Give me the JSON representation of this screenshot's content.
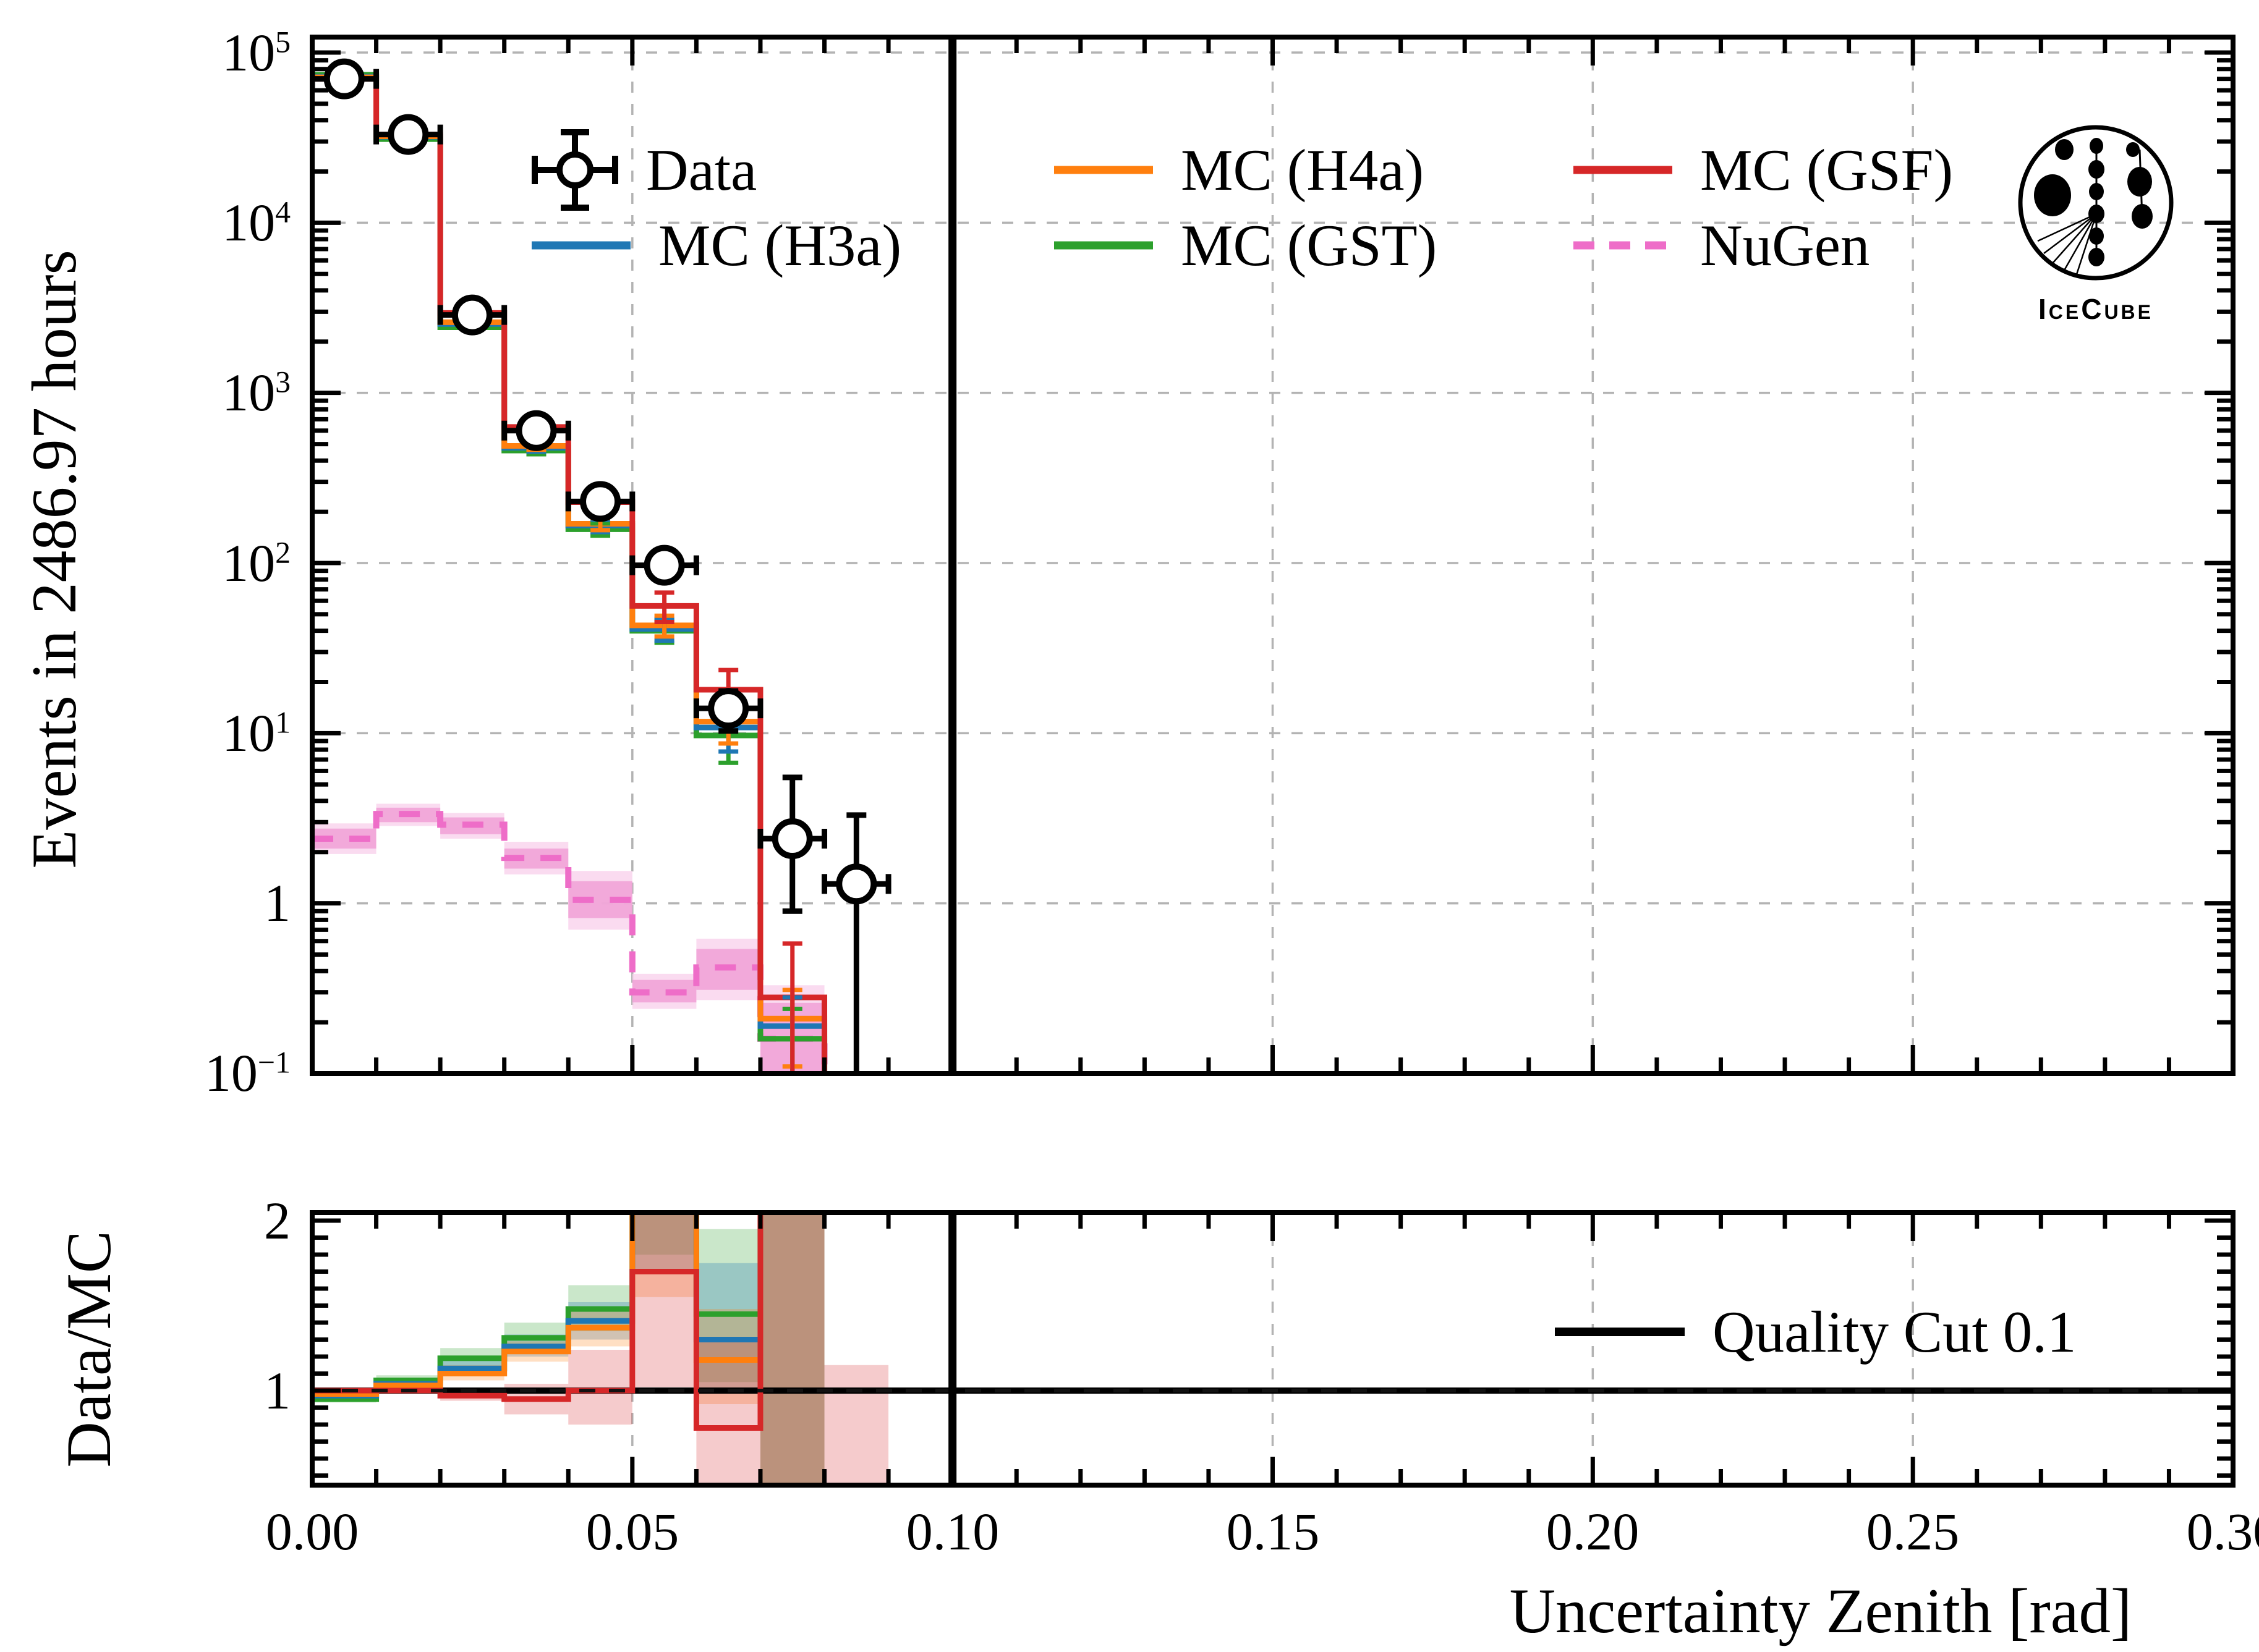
{
  "chart_data": {
    "type": "histogram_with_ratio",
    "x_axis": {
      "label": "Uncertainty Zenith [rad]",
      "min": 0.0,
      "max": 0.3,
      "tick_labels": [
        "0.00",
        "0.05",
        "0.10",
        "0.15",
        "0.20",
        "0.25",
        "0.30"
      ],
      "tick_values": [
        0.0,
        0.05,
        0.1,
        0.15,
        0.2,
        0.25,
        0.3
      ],
      "minor_step": 0.01,
      "grid": true
    },
    "main": {
      "ylabel": "Events in 2486.97 hours",
      "yscale": "log",
      "ylim": [
        0.1,
        123000
      ],
      "yticks": [
        {
          "base": "10",
          "exp": "5",
          "value": 100000
        },
        {
          "base": "10",
          "exp": "4",
          "value": 10000
        },
        {
          "base": "10",
          "exp": "3",
          "value": 1000
        },
        {
          "base": "10",
          "exp": "2",
          "value": 100
        },
        {
          "base": "10",
          "exp": "1",
          "value": 10
        },
        {
          "base": "1",
          "exp": "",
          "value": 1
        },
        {
          "base": "10",
          "exp": "−1",
          "value": 0.1
        }
      ],
      "bin_edges": [
        0.0,
        0.01,
        0.02,
        0.03,
        0.04,
        0.05,
        0.06,
        0.07,
        0.08,
        0.09
      ],
      "data": {
        "label": "Data",
        "color": "#000000",
        "values": [
          70000,
          33000,
          2870,
          600,
          230,
          97,
          14,
          2.4,
          1.3
        ],
        "yerr_lo": [
          260,
          180,
          54,
          25,
          15,
          10,
          3.7,
          1.5,
          1.25
        ],
        "yerr_hi": [
          260,
          180,
          54,
          25,
          15,
          10,
          3.7,
          3.1,
          2.0
        ]
      },
      "mc_series": [
        {
          "name": "MC (GST)",
          "color": "#2ca02c",
          "values": [
            74000,
            31000,
            2430,
            458,
            158,
            40,
            9.7,
            0.16
          ],
          "errors": [
            null,
            null,
            null,
            22,
            13,
            6,
            3,
            0.08
          ]
        },
        {
          "name": "MC (H3a)",
          "color": "#1f77b4",
          "values": [
            72000,
            32000,
            2540,
            476,
            166,
            41,
            10.8,
            0.19
          ],
          "errors": [
            null,
            null,
            null,
            25,
            14,
            6,
            3,
            0.09
          ]
        },
        {
          "name": "MC (H4a)",
          "color": "#ff7f0e",
          "values": [
            71500,
            32200,
            2600,
            488,
            170,
            43,
            11.7,
            0.21
          ],
          "errors": [
            null,
            null,
            null,
            25,
            14,
            6,
            3,
            0.1
          ]
        },
        {
          "name": "MC (GSF)",
          "color": "#d62728",
          "values": [
            70000,
            33000,
            2950,
            630,
            228,
            56,
            18,
            0.28
          ],
          "errors": [
            null,
            null,
            null,
            45,
            30,
            11,
            5.5,
            0.3
          ]
        }
      ],
      "nugen": {
        "name": "NuGen",
        "color": "#ee6dc8",
        "line_style": "dashed",
        "values": [
          2.4,
          3.35,
          2.9,
          1.85,
          1.05,
          0.3,
          0.42,
          0.16
        ],
        "band_inner_lo": [
          2.1,
          3.0,
          2.55,
          1.6,
          0.82,
          0.262,
          0.31,
          0.1
        ],
        "band_inner_hi": [
          2.75,
          3.65,
          3.2,
          2.1,
          1.35,
          0.355,
          0.54,
          0.26
        ],
        "band_outer_lo": [
          1.95,
          2.85,
          2.4,
          1.48,
          0.7,
          0.24,
          0.27,
          0.08
        ],
        "band_outer_hi": [
          2.95,
          3.85,
          3.4,
          2.3,
          1.55,
          0.385,
          0.62,
          0.33
        ]
      }
    },
    "ratio": {
      "ylabel": "Data/MC",
      "ylim": [
        0.44,
        2.05
      ],
      "yticks": [
        {
          "label": "2",
          "value": 2
        },
        {
          "label": "1",
          "value": 1
        }
      ],
      "reference_line": 1.0,
      "series": [
        {
          "name": "MC (GST)",
          "color": "#2ca02c",
          "values": [
            0.95,
            1.06,
            1.19,
            1.31,
            1.48,
            null,
            1.45,
            null,
            null
          ],
          "band_lo": [
            0.93,
            1.03,
            1.13,
            1.23,
            1.35,
            1.8,
            1.05,
            0.4,
            null
          ],
          "band_hi": [
            0.97,
            1.09,
            1.25,
            1.4,
            1.62,
            2.3,
            1.95,
            2.3,
            null
          ]
        },
        {
          "name": "MC (H3a)",
          "color": "#1f77b4",
          "values": [
            0.97,
            1.04,
            1.13,
            1.26,
            1.41,
            null,
            1.3,
            null,
            null
          ],
          "band_lo": [
            0.945,
            1.02,
            1.09,
            1.2,
            1.3,
            1.7,
            1.0,
            0.4,
            null
          ],
          "band_hi": [
            0.985,
            1.065,
            1.19,
            1.33,
            1.52,
            2.3,
            1.75,
            2.3,
            null
          ]
        },
        {
          "name": "MC (H4a)",
          "color": "#ff7f0e",
          "values": [
            0.98,
            1.03,
            1.1,
            1.23,
            1.37,
            null,
            1.18,
            null,
            null
          ],
          "band_lo": [
            0.955,
            1.01,
            1.06,
            1.17,
            1.26,
            1.55,
            0.92,
            0.4,
            null
          ],
          "band_hi": [
            0.995,
            1.05,
            1.15,
            1.29,
            1.47,
            2.3,
            1.48,
            2.3,
            null
          ]
        },
        {
          "name": "MC (GSF)",
          "color": "#d62728",
          "values": [
            1.0,
            1.0,
            0.97,
            0.95,
            1.0,
            1.7,
            0.78,
            null,
            null
          ],
          "band_lo": [
            0.985,
            0.985,
            0.94,
            0.86,
            0.8,
            1.02,
            0.4,
            0.4,
            0.4
          ],
          "band_hi": [
            1.015,
            1.015,
            1.0,
            1.04,
            1.24,
            2.3,
            1.3,
            2.3,
            1.15
          ]
        }
      ],
      "quality_cut": {
        "x": 0.1,
        "label": "Quality Cut 0.1"
      }
    },
    "legend": {
      "items": [
        {
          "label": "Data",
          "type": "marker",
          "color": "#000000"
        },
        {
          "label": "MC (H3a)",
          "type": "line",
          "color": "#1f77b4"
        },
        {
          "label": "MC (H4a)",
          "type": "line",
          "color": "#ff7f0e"
        },
        {
          "label": "MC (GST)",
          "type": "line",
          "color": "#2ca02c"
        },
        {
          "label": "MC (GSF)",
          "type": "line",
          "color": "#d62728"
        },
        {
          "label": "NuGen",
          "type": "dashed",
          "color": "#ee6dc8"
        }
      ]
    },
    "grid": {
      "color": "#b3b3b3",
      "style": "dashed"
    }
  },
  "logo": {
    "text": "IceCube"
  }
}
